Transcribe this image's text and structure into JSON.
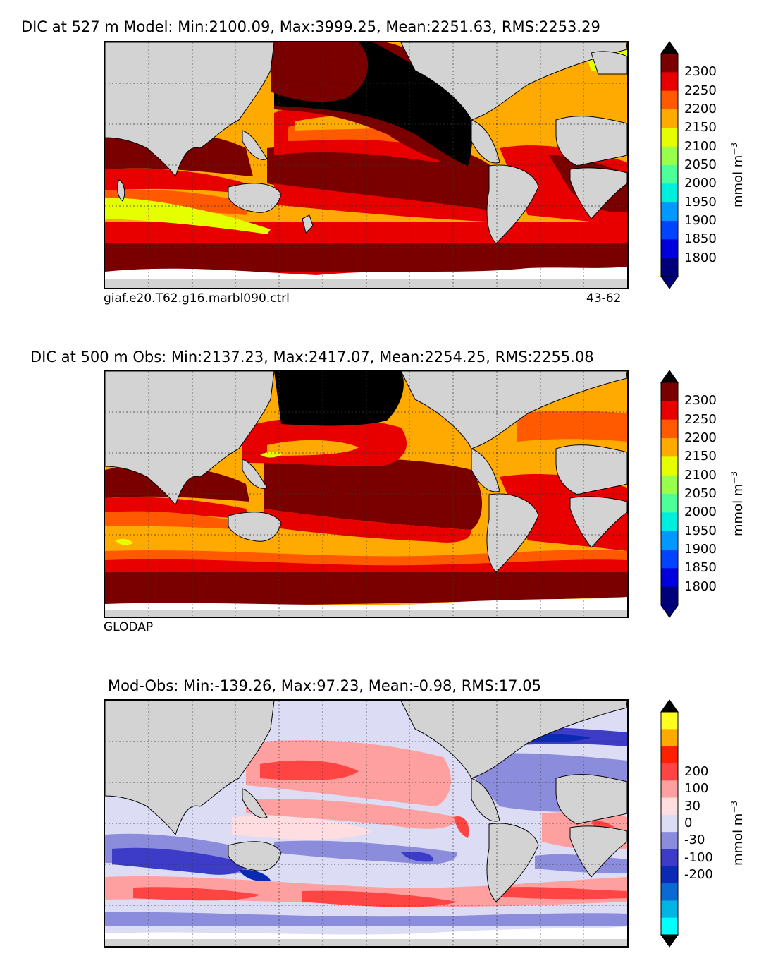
{
  "panels": [
    {
      "title": "DIC at 527 m Model: Min:2100.09, Max:3999.25, Mean:2251.63, RMS:2253.29",
      "caption_left": "giaf.e20.T62.g16.marbl090.ctrl",
      "caption_right": "43-62",
      "colorbar": {
        "unit": "mmol m",
        "unit_exp": "−3",
        "ticks": [
          "2300",
          "2250",
          "2200",
          "2150",
          "2100",
          "2050",
          "2000",
          "1950",
          "1900",
          "1850",
          "1800"
        ],
        "colors": [
          "#7a0000",
          "#e80000",
          "#ff5a00",
          "#ffaa00",
          "#e6ff00",
          "#99ff4d",
          "#4dff99",
          "#00eedd",
          "#0099ff",
          "#0044ff",
          "#0000dd",
          "#00007a"
        ],
        "over_color": "#000000",
        "under_color": "#00007a"
      }
    },
    {
      "title": "DIC at 500 m Obs: Min:2137.23, Max:2417.07, Mean:2254.25, RMS:2255.08",
      "caption_left": "GLODAP",
      "caption_right": "",
      "colorbar": {
        "unit": "mmol m",
        "unit_exp": "−3",
        "ticks": [
          "2300",
          "2250",
          "2200",
          "2150",
          "2100",
          "2050",
          "2000",
          "1950",
          "1900",
          "1850",
          "1800"
        ],
        "colors": [
          "#7a0000",
          "#e80000",
          "#ff5a00",
          "#ffaa00",
          "#e6ff00",
          "#99ff4d",
          "#4dff99",
          "#00eedd",
          "#0099ff",
          "#0044ff",
          "#0000dd",
          "#00007a"
        ],
        "over_color": "#000000",
        "under_color": "#00007a"
      }
    },
    {
      "title": "Mod-Obs: Min:-139.26, Max:97.23, Mean:-0.98, RMS:17.05",
      "caption_left": "",
      "caption_right": "",
      "colorbar": {
        "unit": "mmol m",
        "unit_exp": "−3",
        "ticks": [
          "200",
          "100",
          "30",
          "0",
          "-30",
          "-100",
          "-200"
        ],
        "colors": [
          "#ffff20",
          "#ffaa00",
          "#ff2000",
          "#ff4444",
          "#ffa0a0",
          "#ffdde0",
          "#dcdcf5",
          "#8c8cdc",
          "#3c3cc8",
          "#0a2ab4",
          "#0a6ad4",
          "#00b4e6",
          "#00ffff"
        ],
        "over_color": "#000000",
        "under_color": "#000000"
      }
    }
  ],
  "colors": {
    "land": "#d3d3d3",
    "ice": "#ffffff"
  }
}
